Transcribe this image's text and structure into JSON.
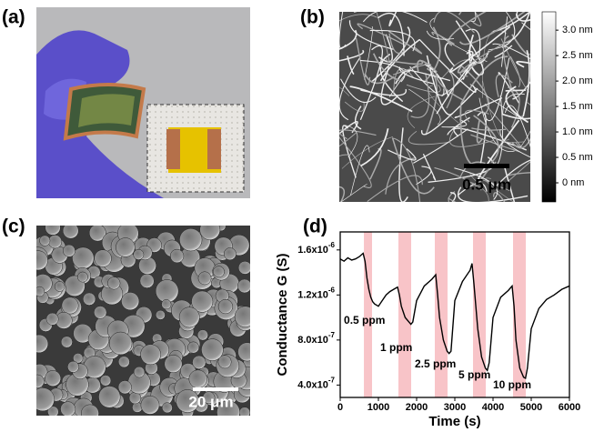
{
  "figure": {
    "panel_labels": [
      "(a)",
      "(b)",
      "(c)",
      "(d)"
    ],
    "colorbar": {
      "lim": [
        -0.375,
        3.36
      ],
      "ticks": [
        {
          "value": 3,
          "label": "3.0 nm"
        },
        {
          "value": 2.5,
          "label": "2.5 nm"
        },
        {
          "value": 2,
          "label": "2.0 nm"
        },
        {
          "value": 1.5,
          "label": "1.5 nm"
        },
        {
          "value": 1,
          "label": "1.0 nm"
        },
        {
          "value": 0.5,
          "label": "0.5 nm"
        },
        {
          "value": 0,
          "label": "0 nm"
        }
      ]
    },
    "scale_bars": [
      "0.5 μm",
      "20 μm"
    ]
  },
  "chart_data": {
    "type": "line",
    "xlabel": "Time (s)",
    "ylabel": "Conductance G (S)",
    "color": "#000000",
    "xlim": [
      0,
      6000
    ],
    "xticks": [
      0,
      1000,
      2000,
      3000,
      4000,
      5000,
      6000
    ],
    "ylim": [
      2.9e-07,
      1.76e-06
    ],
    "yticks": [
      {
        "value": 4e-07,
        "label": "4.0x10-7"
      },
      {
        "value": 8e-07,
        "label": "8.0x10-7"
      },
      {
        "value": 1.2e-06,
        "label": "1.2x10-6"
      },
      {
        "value": 1.6e-06,
        "label": "1.6x10-6"
      }
    ],
    "band_color": "#f8c4c8",
    "bands": [
      {
        "start": 620,
        "end": 833,
        "label": "0.5 ppm"
      },
      {
        "start": 1524,
        "end": 1857,
        "label": "1 ppm"
      },
      {
        "start": 2476,
        "end": 2810,
        "label": "2.5 ppm"
      },
      {
        "start": 3476,
        "end": 3810,
        "label": "5 ppm"
      },
      {
        "start": 4524,
        "end": 4857,
        "label": "10 ppm"
      }
    ],
    "x": [
      0,
      100,
      200,
      300,
      400,
      500,
      600,
      650,
      700,
      750,
      800,
      850,
      900,
      1000,
      1100,
      1200,
      1300,
      1400,
      1500,
      1550,
      1600,
      1700,
      1800,
      1850,
      1900,
      2000,
      2200,
      2400,
      2500,
      2550,
      2600,
      2700,
      2800,
      2850,
      2900,
      3000,
      3200,
      3400,
      3450,
      3500,
      3600,
      3700,
      3800,
      3850,
      3900,
      4000,
      4200,
      4400,
      4500,
      4550,
      4600,
      4700,
      4800,
      4850,
      4900,
      5000,
      5200,
      5400,
      5600,
      5800,
      6000
    ],
    "values": [
      1.52e-06,
      1.5e-06,
      1.53e-06,
      1.51e-06,
      1.52e-06,
      1.54e-06,
      1.57e-06,
      1.5e-06,
      1.35e-06,
      1.25e-06,
      1.18e-06,
      1.14e-06,
      1.12e-06,
      1.1e-06,
      1.15e-06,
      1.2e-06,
      1.23e-06,
      1.25e-06,
      1.27e-06,
      1.2e-06,
      1.1e-06,
      1e-06,
      9.6e-07,
      9.4e-07,
      9.6e-07,
      1.15e-06,
      1.28e-06,
      1.34e-06,
      1.38e-06,
      1.2e-06,
      1e-06,
      8e-07,
      7e-07,
      6.8e-07,
      7e-07,
      1.15e-06,
      1.32e-06,
      1.42e-06,
      1.48e-06,
      1.3e-06,
      9e-07,
      6.5e-07,
      5.5e-07,
      5.3e-07,
      6e-07,
      1e-06,
      1.18e-06,
      1.24e-06,
      1.28e-06,
      1.1e-06,
      8e-07,
      5.5e-07,
      4.7e-07,
      4.6e-07,
      5.5e-07,
      9e-07,
      1.08e-06,
      1.16e-06,
      1.2e-06,
      1.25e-06,
      1.28e-06
    ]
  }
}
